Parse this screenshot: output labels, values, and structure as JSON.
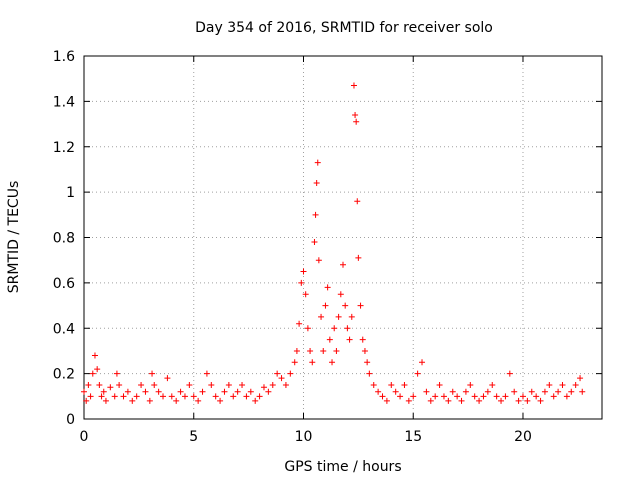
{
  "chart_data": {
    "type": "scatter",
    "title": "Day 354 of 2016, SRMTID for receiver solo",
    "xlabel": "GPS time / hours",
    "ylabel": "SRMTID / TECUs",
    "xlim": [
      0,
      23.6
    ],
    "ylim": [
      0,
      1.6
    ],
    "x_ticks": [
      0,
      5,
      10,
      15,
      20
    ],
    "x_tick_labels": [
      "0",
      "5",
      "10",
      "15",
      "20"
    ],
    "y_ticks": [
      0,
      0.2,
      0.4,
      0.6,
      0.8,
      1.0,
      1.2,
      1.4,
      1.6
    ],
    "y_tick_labels": [
      "0",
      "0.2",
      "0.4",
      "0.6",
      "0.8",
      "1",
      "1.2",
      "1.4",
      "1.6"
    ],
    "grid": true,
    "marker": "+",
    "color": "#ff0000",
    "series": [
      {
        "name": "SRMTID",
        "x": [
          0.0,
          0.1,
          0.2,
          0.3,
          0.4,
          0.5,
          0.6,
          0.7,
          0.8,
          0.9,
          1.0,
          1.2,
          1.4,
          1.5,
          1.6,
          1.8,
          2.0,
          2.2,
          2.4,
          2.6,
          2.8,
          3.0,
          3.1,
          3.2,
          3.4,
          3.6,
          3.8,
          4.0,
          4.2,
          4.4,
          4.6,
          4.8,
          5.0,
          5.2,
          5.4,
          5.6,
          5.8,
          6.0,
          6.2,
          6.4,
          6.6,
          6.8,
          7.0,
          7.2,
          7.4,
          7.6,
          7.8,
          8.0,
          8.2,
          8.4,
          8.6,
          8.8,
          9.0,
          9.2,
          9.4,
          9.6,
          9.7,
          9.8,
          9.9,
          10.0,
          10.1,
          10.2,
          10.3,
          10.4,
          10.5,
          10.55,
          10.6,
          10.65,
          10.7,
          10.8,
          10.9,
          11.0,
          11.1,
          11.2,
          11.3,
          11.4,
          11.5,
          11.6,
          11.7,
          11.8,
          11.9,
          12.0,
          12.1,
          12.2,
          12.3,
          12.35,
          12.4,
          12.45,
          12.5,
          12.6,
          12.7,
          12.8,
          12.9,
          13.0,
          13.2,
          13.4,
          13.6,
          13.8,
          14.0,
          14.2,
          14.4,
          14.6,
          14.8,
          15.0,
          15.2,
          15.4,
          15.6,
          15.8,
          16.0,
          16.2,
          16.4,
          16.6,
          16.8,
          17.0,
          17.2,
          17.4,
          17.6,
          17.8,
          18.0,
          18.2,
          18.4,
          18.6,
          18.8,
          19.0,
          19.2,
          19.4,
          19.6,
          19.8,
          20.0,
          20.2,
          20.4,
          20.6,
          20.8,
          21.0,
          21.2,
          21.4,
          21.6,
          21.8,
          22.0,
          22.2,
          22.4,
          22.6,
          22.7
        ],
        "y": [
          0.12,
          0.08,
          0.15,
          0.1,
          0.2,
          0.28,
          0.22,
          0.15,
          0.1,
          0.12,
          0.08,
          0.14,
          0.1,
          0.2,
          0.15,
          0.1,
          0.12,
          0.08,
          0.1,
          0.15,
          0.12,
          0.08,
          0.2,
          0.15,
          0.12,
          0.1,
          0.18,
          0.1,
          0.08,
          0.12,
          0.1,
          0.15,
          0.1,
          0.08,
          0.12,
          0.2,
          0.15,
          0.1,
          0.08,
          0.12,
          0.15,
          0.1,
          0.12,
          0.15,
          0.1,
          0.12,
          0.08,
          0.1,
          0.14,
          0.12,
          0.15,
          0.2,
          0.18,
          0.15,
          0.2,
          0.25,
          0.3,
          0.42,
          0.6,
          0.65,
          0.55,
          0.4,
          0.3,
          0.25,
          0.78,
          0.9,
          1.04,
          1.13,
          0.7,
          0.45,
          0.3,
          0.5,
          0.58,
          0.35,
          0.25,
          0.4,
          0.3,
          0.45,
          0.55,
          0.68,
          0.5,
          0.4,
          0.35,
          0.45,
          1.47,
          1.34,
          1.31,
          0.96,
          0.71,
          0.5,
          0.35,
          0.3,
          0.25,
          0.2,
          0.15,
          0.12,
          0.1,
          0.08,
          0.15,
          0.12,
          0.1,
          0.15,
          0.08,
          0.1,
          0.2,
          0.25,
          0.12,
          0.08,
          0.1,
          0.15,
          0.1,
          0.08,
          0.12,
          0.1,
          0.08,
          0.12,
          0.15,
          0.1,
          0.08,
          0.1,
          0.12,
          0.15,
          0.1,
          0.08,
          0.1,
          0.2,
          0.12,
          0.08,
          0.1,
          0.08,
          0.12,
          0.1,
          0.08,
          0.12,
          0.15,
          0.1,
          0.12,
          0.15,
          0.1,
          0.12,
          0.15,
          0.18,
          0.12
        ]
      }
    ]
  }
}
